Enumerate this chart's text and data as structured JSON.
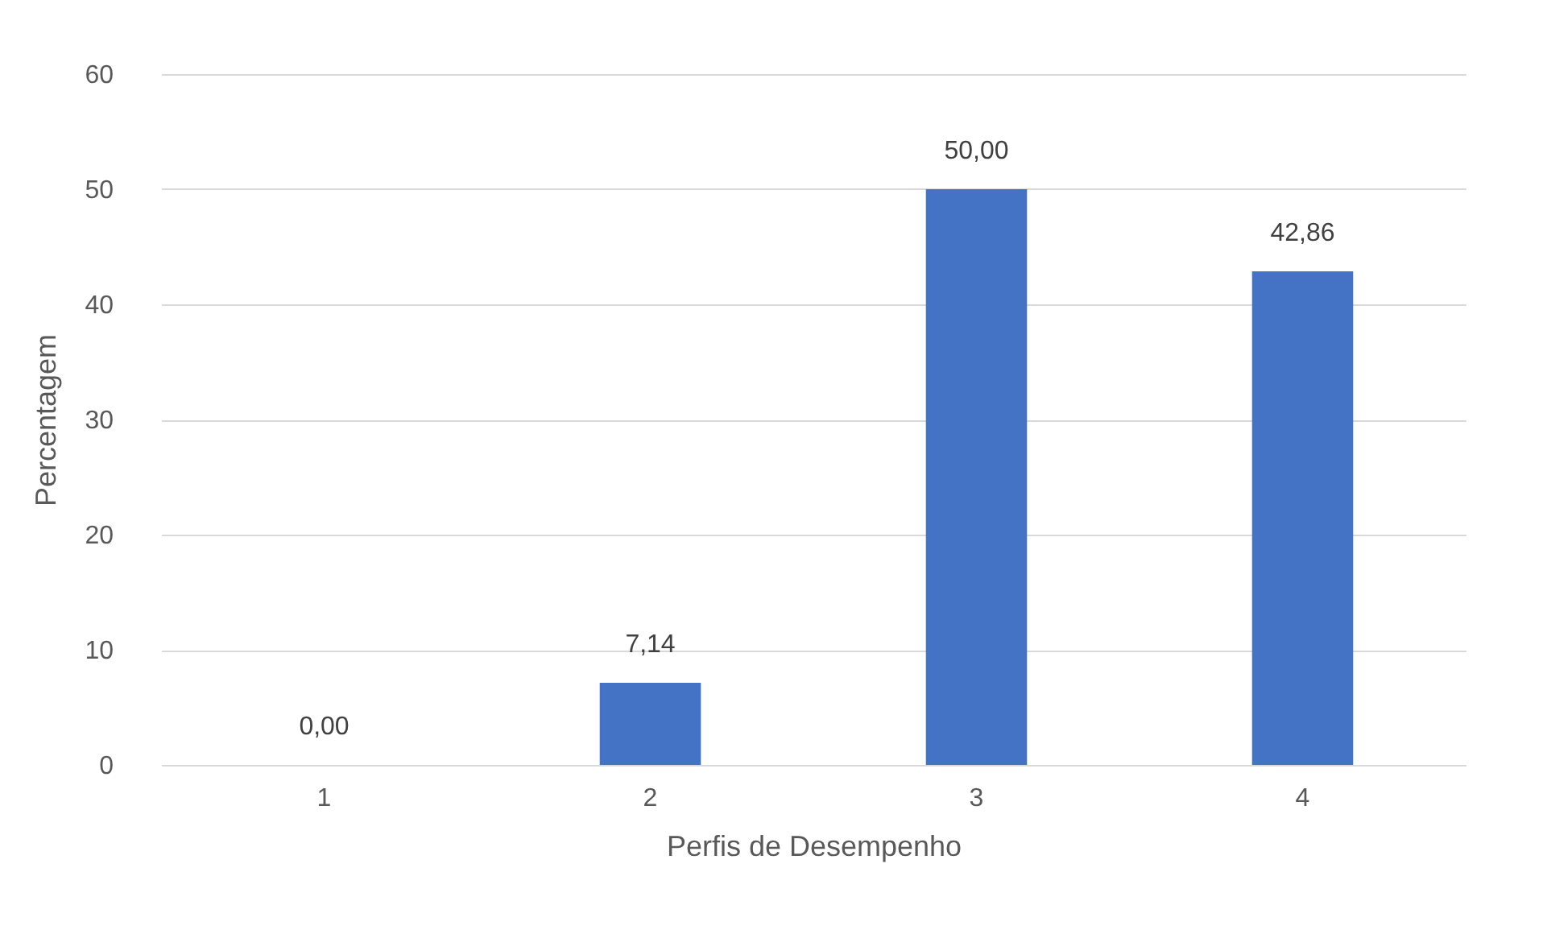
{
  "chart_data": {
    "type": "bar",
    "xlabel": "Perfis de Desempenho",
    "ylabel": "Percentagem",
    "categories": [
      "1",
      "2",
      "3",
      "4"
    ],
    "values": [
      0,
      7.14,
      50.0,
      42.86
    ],
    "value_labels": [
      "0,00",
      "7,14",
      "50,00",
      "42,86"
    ],
    "color": "#4472c4",
    "ylim": [
      0,
      60
    ],
    "yticks": [
      0,
      10,
      20,
      30,
      40,
      50,
      60
    ],
    "grid": "y"
  }
}
